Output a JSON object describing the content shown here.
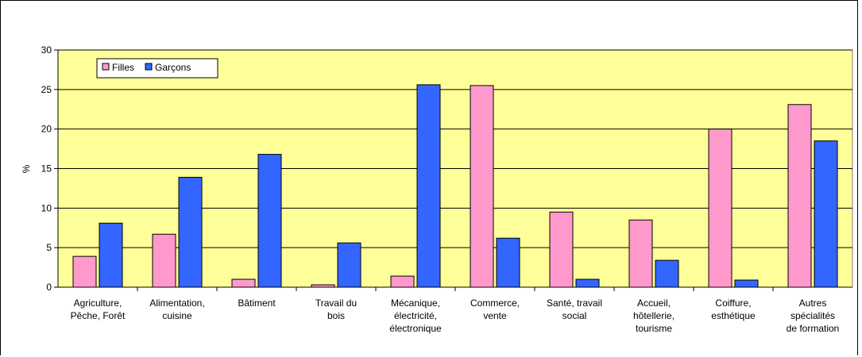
{
  "chart_data": {
    "type": "bar",
    "categories": [
      [
        "Agriculture,",
        "Pêche, Forêt"
      ],
      [
        "Alimentation,",
        "cuisine"
      ],
      [
        "Bâtiment"
      ],
      [
        "Travail du",
        "bois"
      ],
      [
        "Mécanique,",
        "électricité,",
        "électronique"
      ],
      [
        "Commerce,",
        "vente"
      ],
      [
        "Santé, travail",
        "social"
      ],
      [
        "Accueil,",
        "hôtellerie,",
        "tourisme"
      ],
      [
        "Coiffure,",
        "esthétique"
      ],
      [
        "Autres",
        "spécialités",
        "de formation"
      ]
    ],
    "series": [
      {
        "name": "Filles",
        "color": "#ff99cc",
        "values": [
          3.9,
          6.7,
          1.0,
          0.3,
          1.4,
          25.5,
          9.5,
          8.5,
          20.0,
          23.1
        ]
      },
      {
        "name": "Garçons",
        "color": "#3366ff",
        "values": [
          8.1,
          13.9,
          16.8,
          5.6,
          25.6,
          6.2,
          1.0,
          3.4,
          0.9,
          18.5
        ]
      }
    ],
    "ylabel": "%",
    "ylim": [
      0,
      30
    ],
    "yticks": [
      0,
      5,
      10,
      15,
      20,
      25,
      30
    ],
    "grid": true,
    "legend_position": "top-left",
    "plot_background": "#ffff99"
  }
}
